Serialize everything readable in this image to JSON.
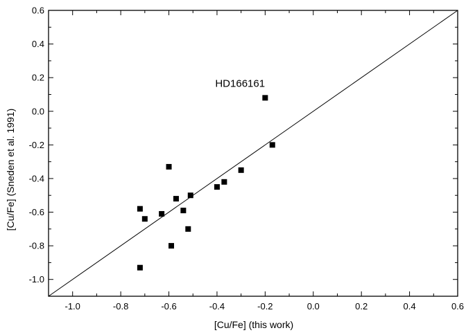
{
  "chart_data": {
    "type": "scatter",
    "xlabel": "[Cu/Fe] (this work)",
    "ylabel": "[Cu/Fe] (Sneden et al. 1991)",
    "xlim": [
      -1.1,
      0.6
    ],
    "ylim": [
      -1.1,
      0.6
    ],
    "x_ticks": [
      -1.0,
      -0.8,
      -0.6,
      -0.4,
      -0.2,
      0.0,
      0.2,
      0.4,
      0.6
    ],
    "x_tick_labels": [
      "-1.0",
      "-0.8",
      "-0.6",
      "-0.4",
      "-0.2",
      "0.0",
      "0.2",
      "0.4",
      "0.6"
    ],
    "y_ticks": [
      -1.0,
      -0.8,
      -0.6,
      -0.4,
      -0.2,
      0.0,
      0.2,
      0.4,
      0.6
    ],
    "y_tick_labels": [
      "-1.0",
      "-0.8",
      "-0.6",
      "-0.4",
      "-0.2",
      "0.0",
      "0.2",
      "0.4",
      "0.6"
    ],
    "grid": false,
    "marker": "filled-square",
    "marker_color": "#000000",
    "points": [
      {
        "x": -0.72,
        "y": -0.58
      },
      {
        "x": -0.7,
        "y": -0.64
      },
      {
        "x": -0.72,
        "y": -0.93
      },
      {
        "x": -0.63,
        "y": -0.61
      },
      {
        "x": -0.6,
        "y": -0.33
      },
      {
        "x": -0.59,
        "y": -0.8
      },
      {
        "x": -0.57,
        "y": -0.52
      },
      {
        "x": -0.54,
        "y": -0.59
      },
      {
        "x": -0.52,
        "y": -0.7
      },
      {
        "x": -0.51,
        "y": -0.5
      },
      {
        "x": -0.4,
        "y": -0.45
      },
      {
        "x": -0.37,
        "y": -0.42
      },
      {
        "x": -0.3,
        "y": -0.35
      },
      {
        "x": -0.2,
        "y": 0.08
      },
      {
        "x": -0.17,
        "y": -0.2
      }
    ],
    "reference_line": {
      "x": [
        -1.1,
        0.6
      ],
      "y": [
        -1.1,
        0.6
      ]
    },
    "annotations": [
      {
        "text": "HD166161",
        "x": -0.2,
        "y": 0.08
      }
    ]
  }
}
